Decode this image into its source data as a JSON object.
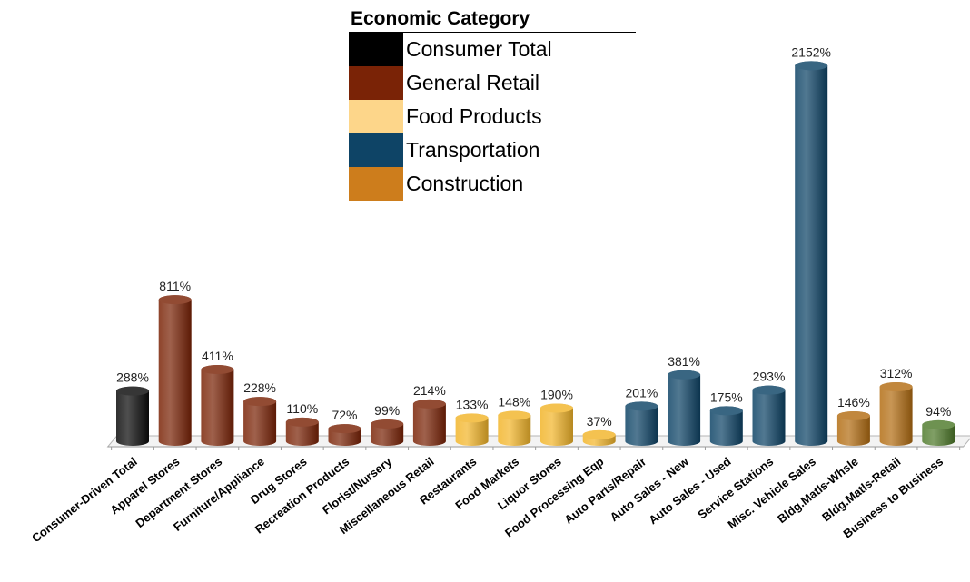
{
  "legend": {
    "title": "Economic Category",
    "items": [
      {
        "label": "Consumer Total",
        "color": "#000000"
      },
      {
        "label": "General Retail",
        "color": "#7a2306"
      },
      {
        "label": "Food Products",
        "color": "#fdd68a"
      },
      {
        "label": "Transportation",
        "color": "#0e4466"
      },
      {
        "label": "Construction",
        "color": "#cd7d1c"
      }
    ]
  },
  "chart_data": {
    "type": "bar",
    "title": "",
    "xlabel": "",
    "ylabel": "",
    "value_suffix": "%",
    "categories": [
      "Consumer-Driven Total",
      "Apparel Stores",
      "Department Stores",
      "Furniture/Appliance",
      "Drug Stores",
      "Recreation Products",
      "Florist/Nursery",
      "Miscellaneous Retail",
      "Restaurants",
      "Food Markets",
      "Liquor Stores",
      "Food Processing Eqp",
      "Auto Parts/Repair",
      "Auto Sales - New",
      "Auto Sales - Used",
      "Service Stations",
      "Misc. Vehicle Sales",
      "Bldg.Matls-Whsle",
      "Bldg.Matls-Retail",
      "Business to Business"
    ],
    "values": [
      288,
      811,
      411,
      228,
      110,
      72,
      99,
      214,
      133,
      148,
      190,
      37,
      201,
      381,
      175,
      293,
      2152,
      146,
      312,
      94
    ],
    "bar_colors": [
      "#0a0a0a",
      "#7a2306",
      "#7a2306",
      "#7a2306",
      "#7a2306",
      "#7a2306",
      "#7a2306",
      "#7a2306",
      "#f2b52a",
      "#f2b52a",
      "#f2b52a",
      "#f2b52a",
      "#0e4466",
      "#0e4466",
      "#0e4466",
      "#0e4466",
      "#0e4466",
      "#b36d13",
      "#b36d13",
      "#4e7a2b"
    ],
    "ylim": [
      0,
      2200
    ],
    "grid": false,
    "legend_position": "top-center"
  }
}
